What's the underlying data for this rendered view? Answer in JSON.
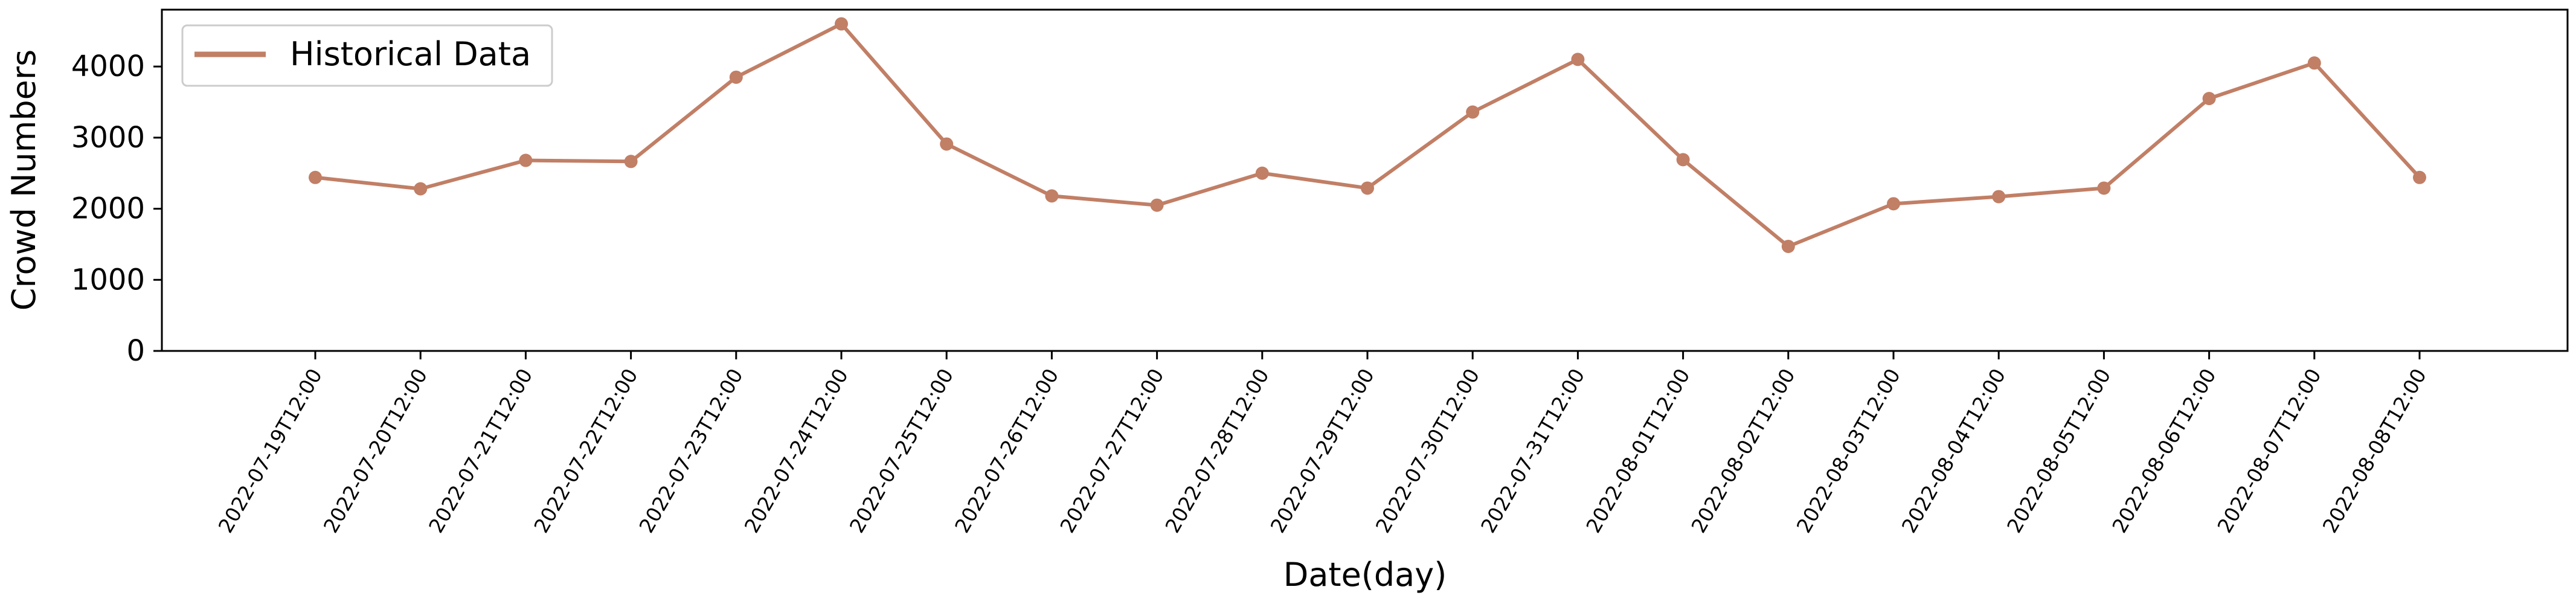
{
  "chart_data": {
    "type": "line",
    "xlabel": "Date(day)",
    "ylabel": "Crowd Numbers",
    "ylim": [
      0,
      4800
    ],
    "yticks": [
      "0",
      "1000",
      "2000",
      "3000",
      "4000"
    ],
    "grid": false,
    "legend_position": "top-left",
    "categories": [
      "2022-07-19T12:00",
      "2022-07-20T12:00",
      "2022-07-21T12:00",
      "2022-07-22T12:00",
      "2022-07-23T12:00",
      "2022-07-24T12:00",
      "2022-07-25T12:00",
      "2022-07-26T12:00",
      "2022-07-27T12:00",
      "2022-07-28T12:00",
      "2022-07-29T12:00",
      "2022-07-30T12:00",
      "2022-07-31T12:00",
      "2022-08-01T12:00",
      "2022-08-02T12:00",
      "2022-08-03T12:00",
      "2022-08-04T12:00",
      "2022-08-05T12:00",
      "2022-08-06T12:00",
      "2022-08-07T12:00",
      "2022-08-08T12:00"
    ],
    "series": [
      {
        "name": "Historical Data",
        "color": "#c17f66",
        "values": [
          2440,
          2280,
          2680,
          2665,
          3850,
          4600,
          2910,
          2180,
          2050,
          2500,
          2290,
          3360,
          4100,
          2690,
          1470,
          2070,
          2170,
          2290,
          3550,
          4050,
          2440
        ]
      }
    ]
  }
}
